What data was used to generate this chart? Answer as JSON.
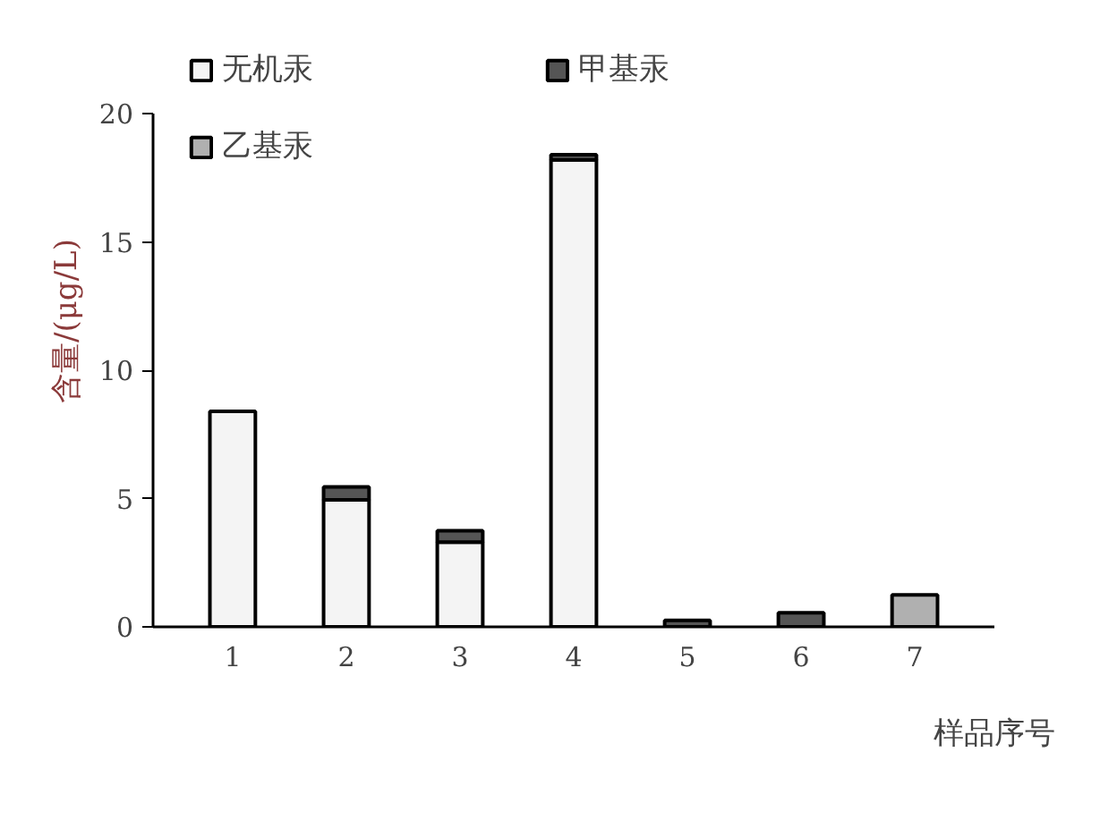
{
  "chart_data": {
    "type": "bar",
    "stacked": true,
    "xlabel": "样品序号",
    "ylabel": "含量/(μg/L)",
    "categories": [
      "1",
      "2",
      "3",
      "4",
      "5",
      "6",
      "7"
    ],
    "series": [
      {
        "name": "无机汞",
        "color": "#f4f4f4",
        "values": [
          8.4,
          4.95,
          3.3,
          18.2,
          null,
          null,
          null
        ]
      },
      {
        "name": "甲基汞",
        "color": "#555555",
        "values": [
          null,
          0.5,
          0.45,
          0.2,
          0.25,
          0.55,
          null
        ]
      },
      {
        "name": "乙基汞",
        "color": "#b0b0b0",
        "values": [
          null,
          null,
          null,
          null,
          null,
          null,
          1.25
        ]
      }
    ],
    "ylim": [
      0,
      20
    ],
    "yticks": [
      0,
      5,
      10,
      15,
      20
    ],
    "grid": false,
    "legend": "top"
  }
}
